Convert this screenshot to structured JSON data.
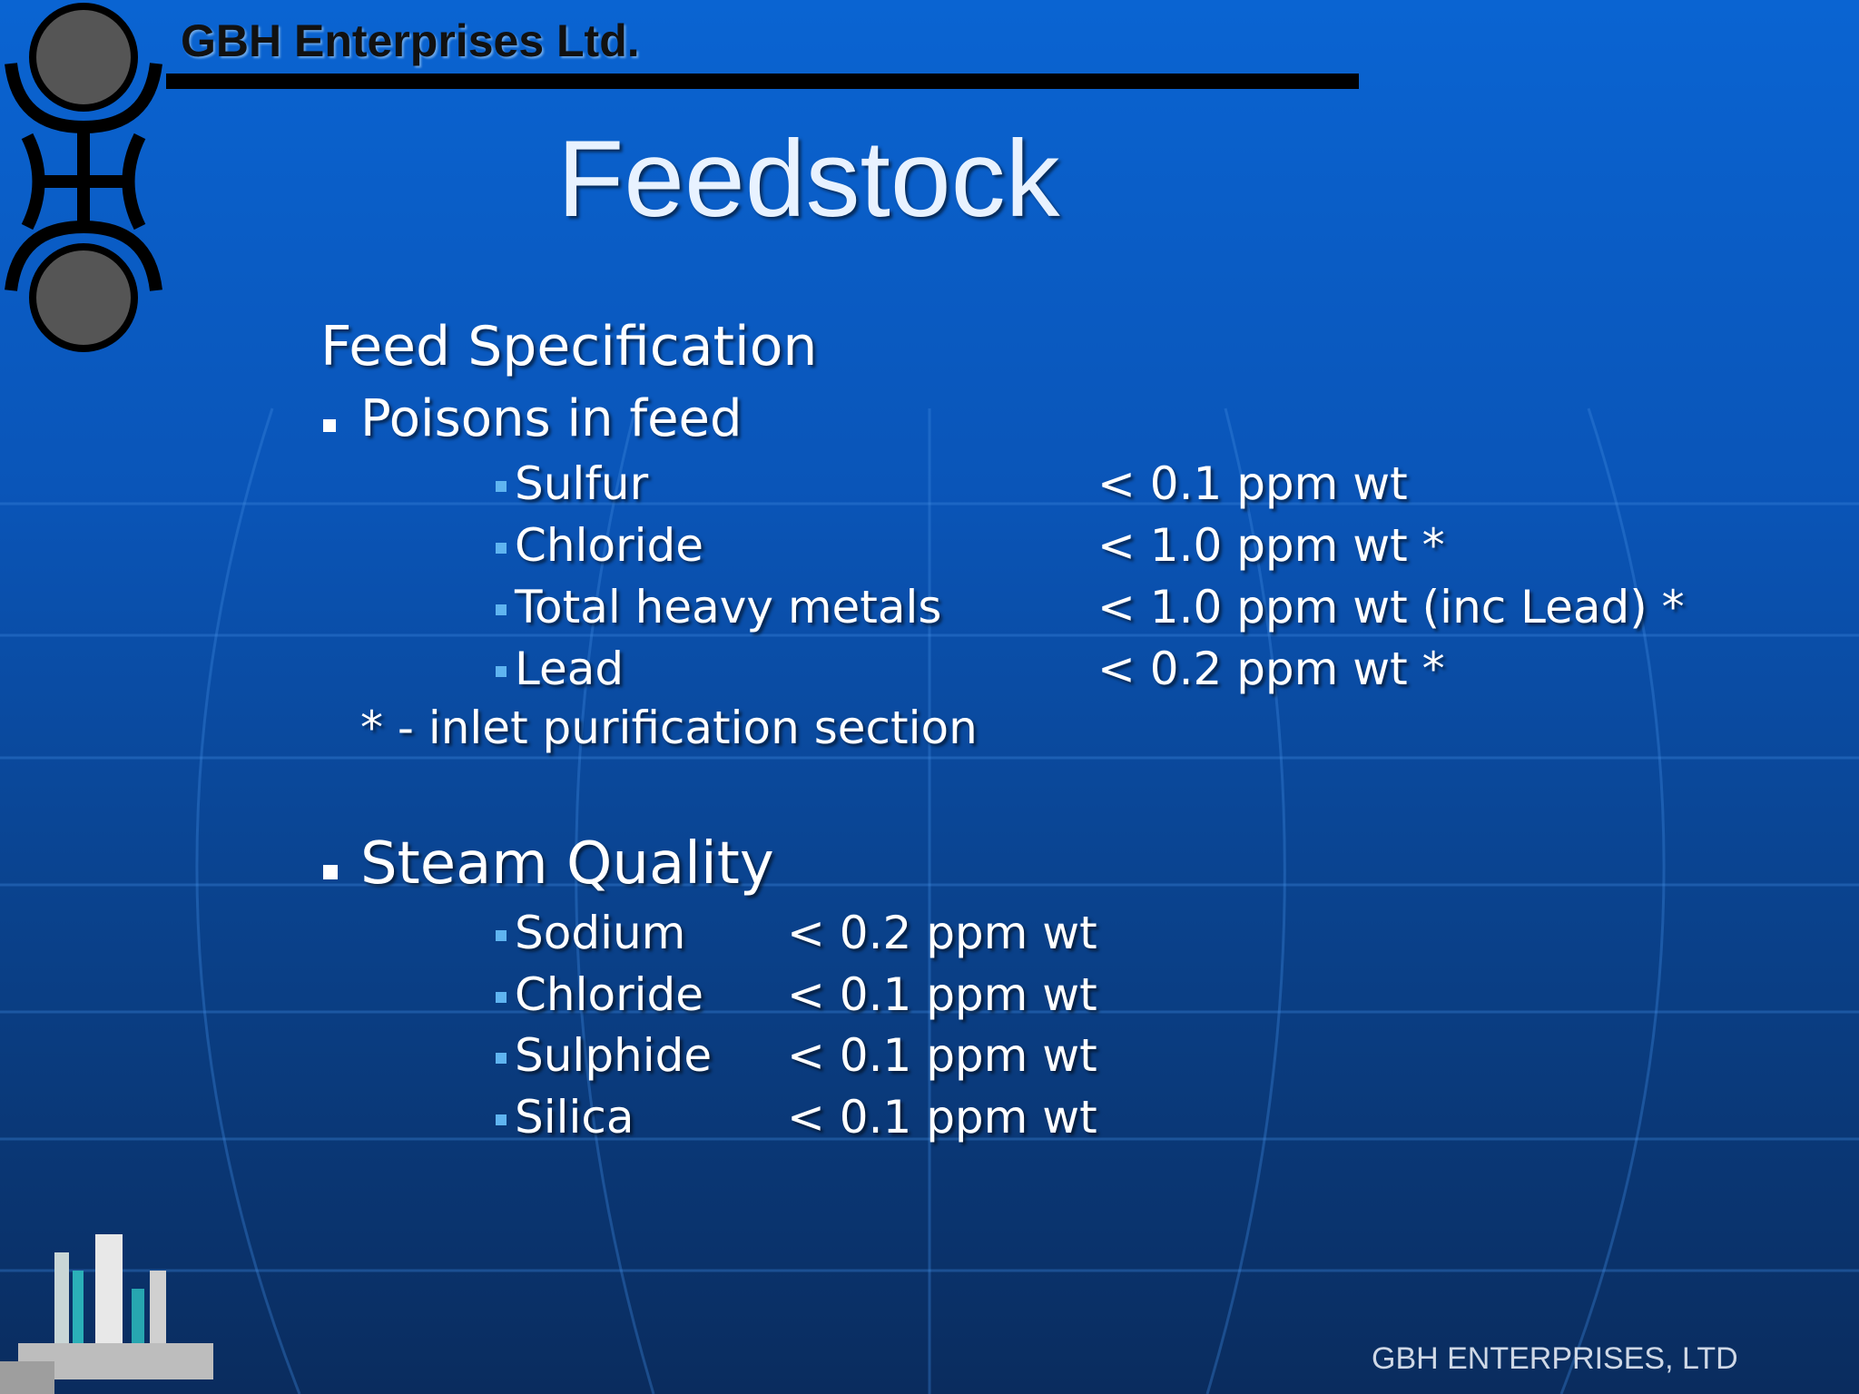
{
  "header": {
    "company": "GBH Enterprises Ltd.",
    "title": "Feedstock"
  },
  "feed_specification": {
    "heading": "Feed Specification",
    "bullet": "Poisons in feed",
    "items": [
      {
        "name": "Sulfur",
        "limit": "< 0.1 ppm wt"
      },
      {
        "name": "Chloride",
        "limit": "< 1.0 ppm wt *"
      },
      {
        "name": "Total heavy metals",
        "limit": "< 1.0 ppm wt (inc Lead) *"
      },
      {
        "name": "Lead",
        "limit": "< 0.2 ppm wt *"
      }
    ],
    "note": "* - inlet purification section"
  },
  "steam_quality": {
    "bullet": "Steam Quality",
    "items": [
      {
        "name": "Sodium",
        "limit": "< 0.2 ppm wt"
      },
      {
        "name": "Chloride",
        "limit": "< 0.1 ppm wt"
      },
      {
        "name": "Sulphide",
        "limit": "< 0.1 ppm wt"
      },
      {
        "name": "Silica",
        "limit": "< 0.1 ppm wt"
      }
    ]
  },
  "footer": {
    "company": "GBH ENTERPRISES, LTD"
  }
}
